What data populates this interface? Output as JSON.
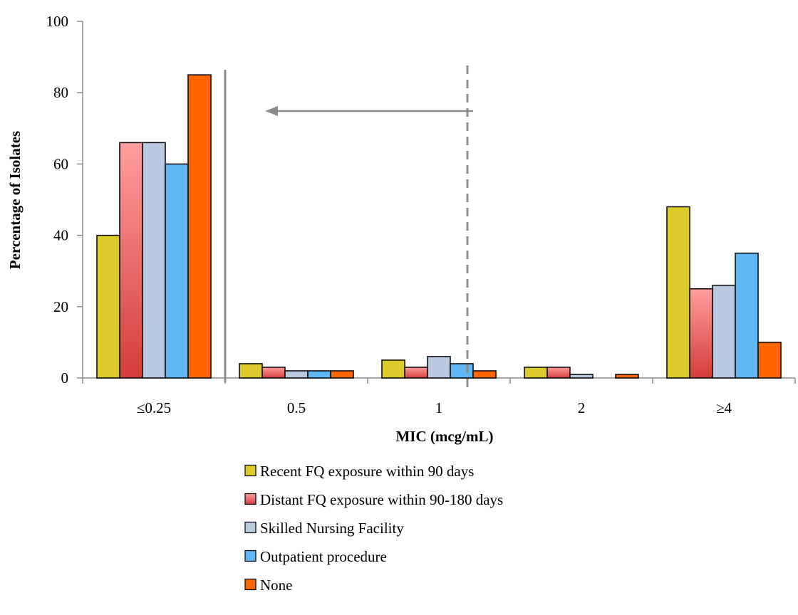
{
  "chart_data": {
    "type": "bar",
    "title": "",
    "xlabel": "MIC (mcg/mL)",
    "ylabel": "Percentage of Isolates",
    "ylim": [
      0,
      100
    ],
    "yticks": [
      0,
      20,
      40,
      60,
      80,
      100
    ],
    "categories": [
      "≤0.25",
      "0.5",
      "1",
      "2",
      "≥4"
    ],
    "series": [
      {
        "name": "Recent FQ exposure within 90 days",
        "color": "#dccb2a",
        "values": [
          40,
          4,
          5,
          3,
          48
        ]
      },
      {
        "name": "Distant FQ exposure within 90-180 days",
        "color": "#e05858",
        "values": [
          66,
          3,
          3,
          3,
          25
        ]
      },
      {
        "name": "Skilled Nursing Facility",
        "color": "#b8c9e0",
        "values": [
          66,
          2,
          6,
          1,
          26
        ]
      },
      {
        "name": "Outpatient procedure",
        "color": "#5fb7f5",
        "values": [
          60,
          2,
          4,
          0,
          35
        ]
      },
      {
        "name": "None",
        "color": "#ff6600",
        "values": [
          85,
          2,
          2,
          1,
          10
        ]
      }
    ],
    "legend_position": "bottom",
    "grid": false,
    "annotations": [
      {
        "type": "solid-vertical-line",
        "between_categories": [
          "≤0.25",
          "0.5"
        ]
      },
      {
        "type": "dashed-vertical-line",
        "between_categories": [
          "1",
          "2"
        ]
      },
      {
        "type": "arrow",
        "direction": "left"
      }
    ]
  }
}
